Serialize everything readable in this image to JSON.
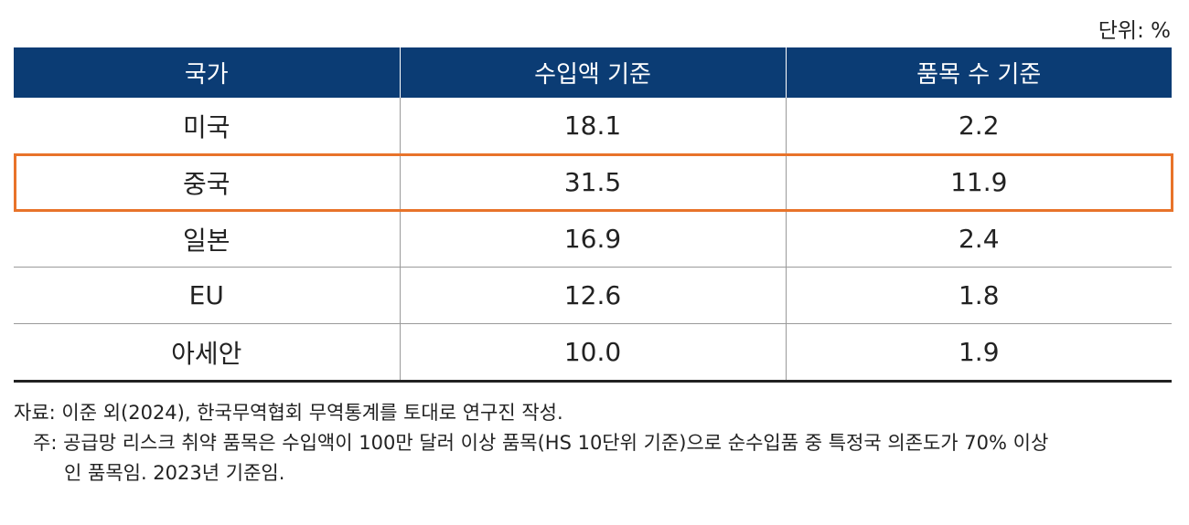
{
  "unit_label": "단위: %",
  "table": {
    "headers": [
      "국가",
      "수입액 기준",
      "품목 수 기준"
    ],
    "rows": [
      {
        "country": "미국",
        "import_value": "18.1",
        "item_count": "2.2",
        "highlighted": false
      },
      {
        "country": "중국",
        "import_value": "31.5",
        "item_count": "11.9",
        "highlighted": true
      },
      {
        "country": "일본",
        "import_value": "16.9",
        "item_count": "2.4",
        "highlighted": false
      },
      {
        "country": "EU",
        "import_value": "12.6",
        "item_count": "1.8",
        "highlighted": false
      },
      {
        "country": "아세안",
        "import_value": "10.0",
        "item_count": "1.9",
        "highlighted": false
      }
    ]
  },
  "colors": {
    "header_bg": "#0b3c74",
    "highlight_border": "#e8732a"
  },
  "notes": {
    "source": "자료: 이준 외(2024), 한국무역협회 무역통계를 토대로 연구진 작성.",
    "note_line1": "주: 공급망 리스크 취약 품목은 수입액이 100만 달러 이상 품목(HS 10단위 기준)으로 순수입품 중 특정국 의존도가 70% 이상",
    "note_line2": "인 품목임. 2023년 기준임."
  }
}
